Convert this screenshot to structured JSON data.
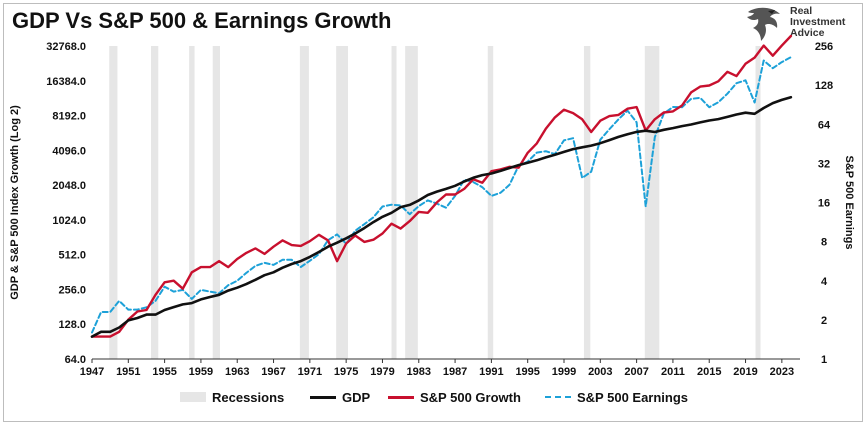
{
  "title": "GDP Vs S&P 500 & Earnings Growth",
  "logo": {
    "line1": "Real",
    "line2": "Investment",
    "line3": "Advice"
  },
  "colors": {
    "gdp": "#111111",
    "sp500": "#c8102e",
    "earnings": "#1da1d8",
    "recession": "#e6e6e6"
  },
  "chart_data": {
    "type": "line",
    "title": "GDP Vs S&P 500 & Earnings Growth",
    "xlabel": "",
    "ylabel": "GDP & S&P 500 Index Growth (Log 2)",
    "y2label": "S&P 500 Earnings",
    "y_scale": "log2",
    "ylim": [
      64,
      32768
    ],
    "y2lim": [
      1,
      256
    ],
    "xlim": [
      1947,
      2025
    ],
    "x_ticks": [
      "1947",
      "1951",
      "1955",
      "1959",
      "1963",
      "1967",
      "1971",
      "1975",
      "1979",
      "1983",
      "1987",
      "1991",
      "1995",
      "1999",
      "2003",
      "2007",
      "2011",
      "2015",
      "2019",
      "2023"
    ],
    "y_ticks": [
      "64.0",
      "128.0",
      "256.0",
      "512.0",
      "1024.0",
      "2048.0",
      "4096.0",
      "8192.0",
      "16384.0",
      "32768.0"
    ],
    "y2_ticks": [
      "1",
      "2",
      "4",
      "8",
      "16",
      "32",
      "64",
      "128",
      "256"
    ],
    "legend_position": "bottom",
    "recessions": [
      [
        1948.9,
        1949.8
      ],
      [
        1953.5,
        1954.3
      ],
      [
        1957.7,
        1958.3
      ],
      [
        1960.3,
        1961.1
      ],
      [
        1969.9,
        1970.9
      ],
      [
        1973.9,
        1975.2
      ],
      [
        1980.0,
        1980.5
      ],
      [
        1981.5,
        1982.9
      ],
      [
        1990.6,
        1991.2
      ],
      [
        2001.2,
        2001.9
      ],
      [
        2007.9,
        2009.5
      ],
      [
        2020.1,
        2020.4
      ]
    ],
    "series": [
      {
        "name": "GDP",
        "axis": "left",
        "x": [
          1947,
          1948,
          1949,
          1950,
          1951,
          1952,
          1953,
          1954,
          1955,
          1956,
          1957,
          1958,
          1959,
          1960,
          1961,
          1962,
          1963,
          1964,
          1965,
          1966,
          1967,
          1968,
          1969,
          1970,
          1971,
          1972,
          1973,
          1974,
          1975,
          1976,
          1977,
          1978,
          1979,
          1980,
          1981,
          1982,
          1983,
          1984,
          1985,
          1986,
          1987,
          1988,
          1989,
          1990,
          1991,
          1992,
          1993,
          1994,
          1995,
          1996,
          1997,
          1998,
          1999,
          2000,
          2001,
          2002,
          2003,
          2004,
          2005,
          2006,
          2007,
          2008,
          2009,
          2010,
          2011,
          2012,
          2013,
          2014,
          2015,
          2016,
          2017,
          2018,
          2019,
          2020,
          2021,
          2022,
          2023,
          2024
        ],
        "values": [
          100,
          110,
          110,
          120,
          138,
          145,
          155,
          155,
          170,
          180,
          190,
          195,
          210,
          220,
          230,
          250,
          265,
          285,
          310,
          340,
          360,
          395,
          425,
          450,
          490,
          540,
          600,
          650,
          710,
          780,
          870,
          980,
          1090,
          1180,
          1320,
          1380,
          1510,
          1680,
          1800,
          1900,
          2020,
          2200,
          2370,
          2500,
          2580,
          2720,
          2880,
          3050,
          3200,
          3360,
          3560,
          3750,
          3970,
          4200,
          4350,
          4500,
          4720,
          5020,
          5350,
          5650,
          5920,
          6060,
          5900,
          6170,
          6380,
          6640,
          6860,
          7150,
          7430,
          7630,
          7970,
          8360,
          8680,
          8490,
          9530,
          10500,
          11200,
          11800
        ]
      },
      {
        "name": "S&P 500 Growth",
        "axis": "left",
        "x": [
          1947,
          1948,
          1949,
          1950,
          1951,
          1952,
          1953,
          1954,
          1955,
          1956,
          1957,
          1958,
          1959,
          1960,
          1961,
          1962,
          1963,
          1964,
          1965,
          1966,
          1967,
          1968,
          1969,
          1970,
          1971,
          1972,
          1973,
          1974,
          1975,
          1976,
          1977,
          1978,
          1979,
          1980,
          1981,
          1982,
          1983,
          1984,
          1985,
          1986,
          1987,
          1988,
          1989,
          1990,
          1991,
          1992,
          1993,
          1994,
          1995,
          1996,
          1997,
          1998,
          1999,
          2000,
          2001,
          2002,
          2003,
          2004,
          2005,
          2006,
          2007,
          2008,
          2009,
          2010,
          2011,
          2012,
          2013,
          2014,
          2015,
          2016,
          2017,
          2018,
          2019,
          2020,
          2021,
          2022,
          2023,
          2024
        ],
        "values": [
          100,
          100,
          100,
          110,
          140,
          165,
          170,
          230,
          295,
          305,
          260,
          360,
          400,
          400,
          450,
          400,
          470,
          530,
          580,
          520,
          600,
          680,
          620,
          610,
          670,
          760,
          680,
          450,
          640,
          750,
          660,
          690,
          780,
          950,
          860,
          1000,
          1200,
          1180,
          1450,
          1700,
          1700,
          1900,
          2300,
          2150,
          2700,
          2800,
          2950,
          2900,
          3900,
          4700,
          6300,
          7900,
          9200,
          8600,
          7600,
          5900,
          7400,
          8100,
          8300,
          9400,
          9700,
          6100,
          7600,
          8700,
          8900,
          10000,
          13000,
          14600,
          14900,
          16200,
          19600,
          18000,
          23000,
          26000,
          33000,
          27000,
          33000,
          40000
        ]
      },
      {
        "name": "S&P 500 Earnings",
        "axis": "right",
        "x": [
          1947,
          1948,
          1949,
          1950,
          1951,
          1952,
          1953,
          1954,
          1955,
          1956,
          1957,
          1958,
          1959,
          1960,
          1961,
          1962,
          1963,
          1964,
          1965,
          1966,
          1967,
          1968,
          1969,
          1970,
          1971,
          1972,
          1973,
          1974,
          1975,
          1976,
          1977,
          1978,
          1979,
          1980,
          1981,
          1982,
          1983,
          1984,
          1985,
          1986,
          1987,
          1988,
          1989,
          1990,
          1991,
          1992,
          1993,
          1994,
          1995,
          1996,
          1997,
          1998,
          1999,
          2000,
          2001,
          2002,
          2003,
          2004,
          2005,
          2006,
          2007,
          2008,
          2009,
          2010,
          2011,
          2012,
          2013,
          2014,
          2015,
          2016,
          2017,
          2018,
          2019,
          2020,
          2021,
          2022,
          2023,
          2024
        ],
        "values": [
          1.6,
          2.3,
          2.3,
          2.8,
          2.4,
          2.4,
          2.5,
          2.8,
          3.6,
          3.3,
          3.4,
          2.9,
          3.4,
          3.3,
          3.2,
          3.7,
          4.0,
          4.6,
          5.2,
          5.5,
          5.3,
          5.8,
          5.8,
          5.1,
          5.7,
          6.4,
          8.2,
          9.1,
          7.7,
          9.7,
          10.9,
          12.3,
          14.9,
          15.4,
          15.2,
          13.0,
          15.0,
          16.6,
          15.7,
          14.6,
          18.0,
          24.0,
          23.0,
          21.0,
          18.0,
          19.0,
          21.9,
          30.6,
          33.0,
          38.7,
          39.7,
          37.7,
          48.2,
          50.0,
          24.7,
          27.6,
          48.7,
          58.6,
          69.9,
          81.5,
          66.2,
          14.9,
          50.9,
          77.4,
          86.9,
          86.5,
          100.2,
          102.3,
          86.5,
          94.5,
          109.9,
          132.4,
          139.5,
          94.1,
          197.9,
          172.8,
          192.4,
          210
        ]
      }
    ],
    "legend": [
      {
        "label": "Recessions",
        "style": "rect"
      },
      {
        "label": "GDP",
        "style": "solid"
      },
      {
        "label": "S&P 500 Growth",
        "style": "solid"
      },
      {
        "label": "S&P 500 Earnings",
        "style": "dash"
      }
    ]
  }
}
